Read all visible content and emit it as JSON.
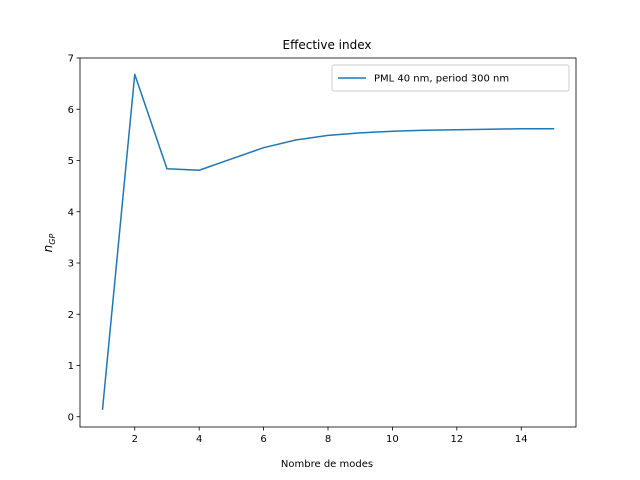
{
  "chart_data": {
    "type": "line",
    "title": "Effective index",
    "xlabel": "Nombre de modes",
    "ylabel": {
      "base": "n",
      "subscript": "GP"
    },
    "xlim": [
      0.3,
      15.7
    ],
    "ylim": [
      -0.2,
      7.0
    ],
    "xticks": [
      2,
      4,
      6,
      8,
      10,
      12,
      14
    ],
    "yticks": [
      0,
      1,
      2,
      3,
      4,
      5,
      6,
      7
    ],
    "grid": false,
    "legend_position": "upper-right",
    "series": [
      {
        "name": "PML 40 nm, period 300 nm",
        "color": "#1f77b4",
        "x": [
          1,
          2,
          3,
          4,
          5,
          6,
          7,
          8,
          9,
          10,
          11,
          12,
          13,
          14,
          15
        ],
        "y": [
          0.15,
          6.68,
          4.84,
          4.81,
          5.03,
          5.25,
          5.4,
          5.49,
          5.54,
          5.57,
          5.59,
          5.6,
          5.61,
          5.62,
          5.62
        ]
      }
    ]
  }
}
